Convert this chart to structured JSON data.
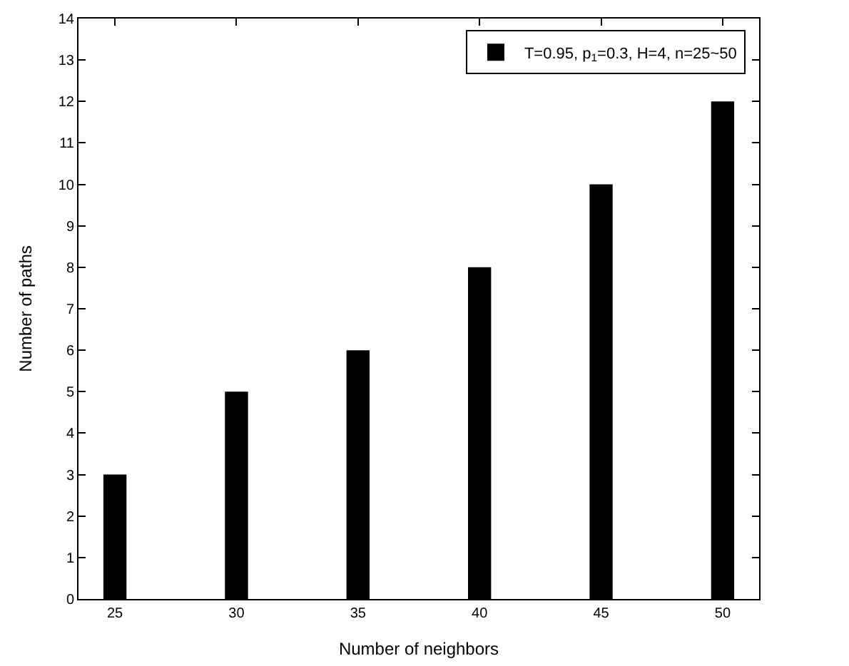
{
  "chart_data": {
    "type": "bar",
    "xlabel": "Number of neighbors",
    "ylabel": "Number of paths",
    "x": [
      25,
      30,
      35,
      40,
      45,
      50
    ],
    "series": [
      {
        "name": "T=0.95, p$_{1}$=0.3, H=4, n=25~50",
        "color": "#000000",
        "values": [
          3,
          5,
          6,
          8,
          10,
          12
        ]
      }
    ],
    "xlim": [
      23.5,
      51.5
    ],
    "xticks": [
      25,
      30,
      35,
      40,
      45,
      50
    ],
    "ylim": [
      0,
      14
    ],
    "yticks": [
      0,
      1,
      2,
      3,
      4,
      5,
      6,
      7,
      8,
      9,
      10,
      11,
      12,
      13,
      14
    ],
    "legend": "top right"
  }
}
